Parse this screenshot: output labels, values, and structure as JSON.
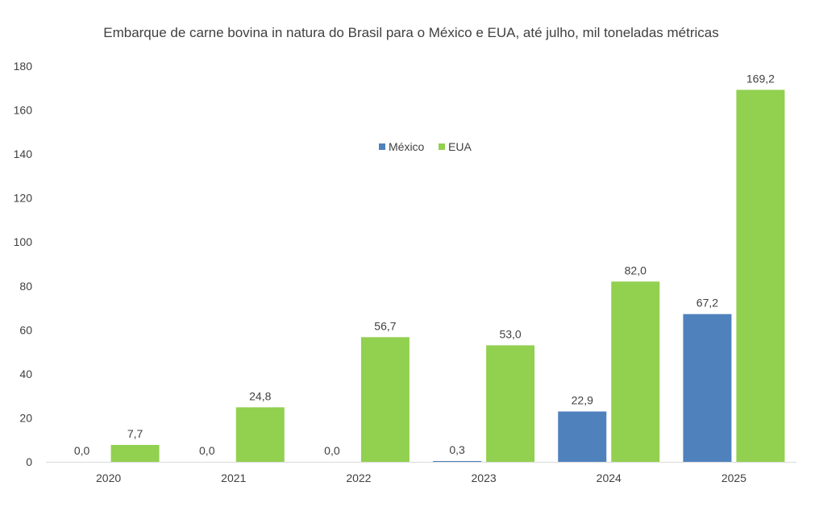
{
  "chart_data": {
    "type": "bar",
    "title": "Embarque de carne bovina in natura do Brasil para o México e EUA, até julho, mil toneladas métricas",
    "xlabel": "",
    "ylabel": "",
    "categories": [
      "2020",
      "2021",
      "2022",
      "2023",
      "2024",
      "2025"
    ],
    "series": [
      {
        "name": "México",
        "color": "#4f81bd",
        "values": [
          0.0,
          0.0,
          0.0,
          0.3,
          22.9,
          67.2
        ],
        "labels": [
          "0,0",
          "0,0",
          "0,0",
          "0,3",
          "22,9",
          "67,2"
        ]
      },
      {
        "name": "EUA",
        "color": "#92d050",
        "values": [
          7.7,
          24.8,
          56.7,
          53.0,
          82.0,
          169.2
        ],
        "labels": [
          "7,7",
          "24,8",
          "56,7",
          "53,0",
          "82,0",
          "169,2"
        ]
      }
    ],
    "ylim": [
      0,
      180
    ],
    "yticks": [
      "0",
      "20",
      "40",
      "60",
      "80",
      "100",
      "120",
      "140",
      "160",
      "180"
    ],
    "grid": false,
    "legend_position": "top-center"
  }
}
